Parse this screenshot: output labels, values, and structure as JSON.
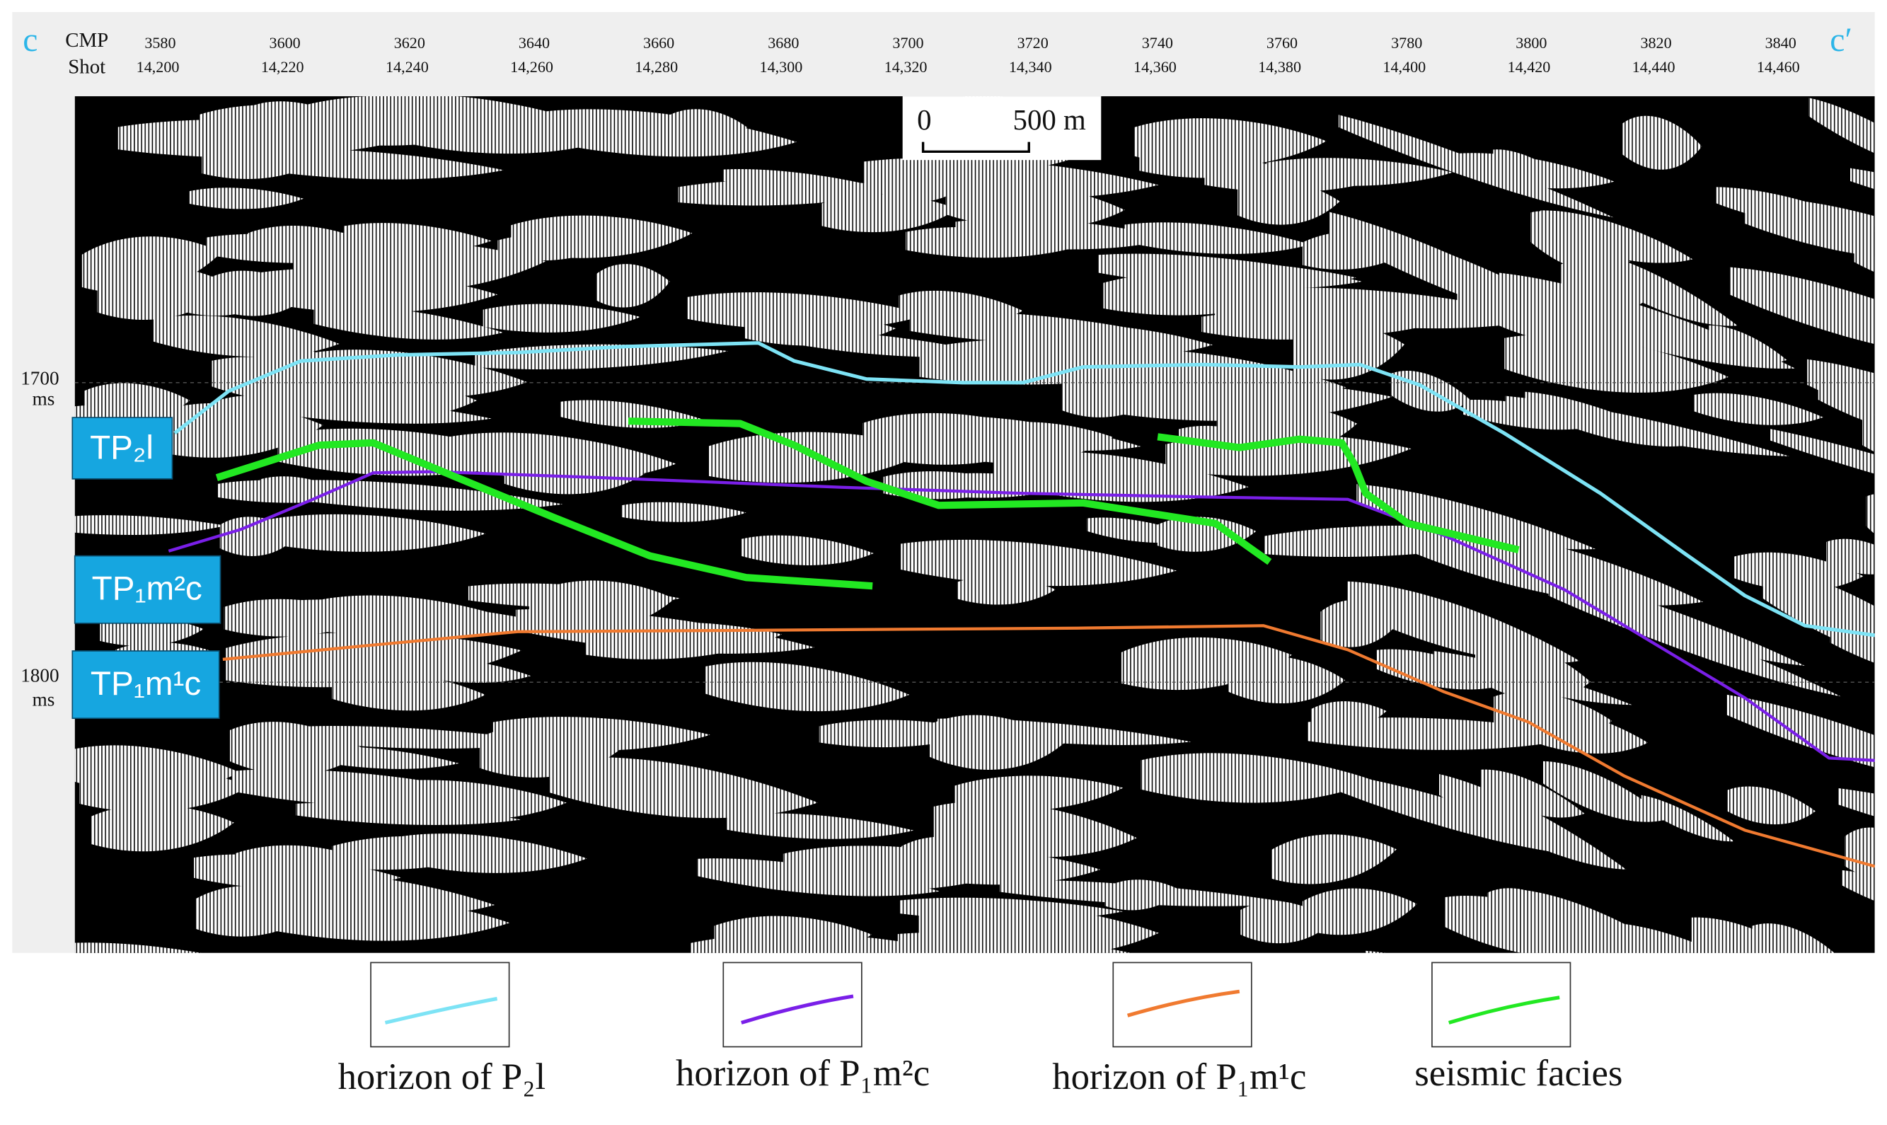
{
  "header": {
    "left": "c",
    "right": "c′",
    "cmp_label": "CMP",
    "shot_label": "Shot"
  },
  "cmp": [
    "3580",
    "3600",
    "3620",
    "3640",
    "3660",
    "3680",
    "3700",
    "3720",
    "3740",
    "3760",
    "3780",
    "3800",
    "3820",
    "3840"
  ],
  "shot": [
    "14,200",
    "14,220",
    "14,240",
    "14,260",
    "14,280",
    "14,300",
    "14,320",
    "14,340",
    "14,360",
    "14,380",
    "14,400",
    "14,420",
    "14,440",
    "14,460"
  ],
  "time_labels": [
    {
      "value": "1700",
      "unit": "ms"
    },
    {
      "value": "1800",
      "unit": "ms"
    }
  ],
  "scale_bar": {
    "start": "0",
    "end": "500 m"
  },
  "horizon_tags": [
    "TP₂l",
    "TP₁m²c",
    "TP₁m¹c"
  ],
  "legend": [
    "horizon of P₂l",
    "horizon of P₁m²c",
    "horizon of P₁m¹c",
    "seismic facies"
  ]
}
